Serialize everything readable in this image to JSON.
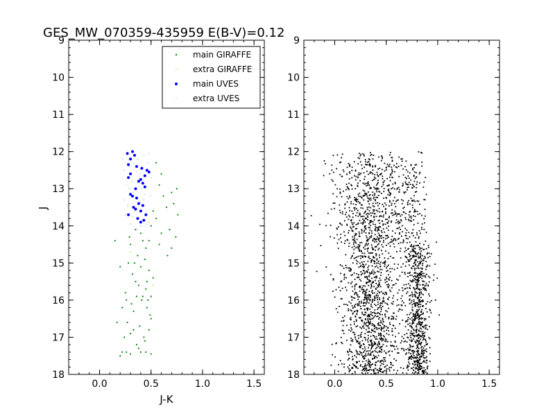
{
  "title": "GES_MW_070359-435959 E(B-V)=0.12",
  "chart_data": [
    {
      "type": "scatter",
      "panel": "left",
      "xlabel": "J-K",
      "ylabel": "J",
      "xlim": [
        -0.3,
        1.6
      ],
      "ylim": [
        18,
        9
      ],
      "y_inverted": true,
      "xticks": [
        "0.0",
        "0.5",
        "1.0",
        "1.5"
      ],
      "yticks": [
        "9",
        "10",
        "11",
        "12",
        "13",
        "14",
        "15",
        "16",
        "17",
        "18"
      ],
      "legend": {
        "placement": "top-right",
        "entries": [
          "main GIRAFFE",
          "extra GIRAFFE",
          "main UVES",
          "extra UVES"
        ]
      },
      "series": [
        {
          "name": "main GIRAFFE",
          "color": "#008000",
          "marker": "small-dot",
          "points": [
            [
              0.55,
              12.3
            ],
            [
              0.6,
              12.6
            ],
            [
              0.58,
              12.9
            ],
            [
              0.62,
              13.2
            ],
            [
              0.65,
              13.5
            ],
            [
              0.7,
              13.1
            ],
            [
              0.72,
              13.4
            ],
            [
              0.75,
              13.0
            ],
            [
              0.76,
              13.7
            ],
            [
              0.74,
              14.3
            ],
            [
              0.68,
              14.1
            ],
            [
              0.7,
              14.6
            ],
            [
              0.66,
              14.8
            ],
            [
              0.6,
              14.2
            ],
            [
              0.58,
              14.5
            ],
            [
              0.55,
              13.8
            ],
            [
              0.52,
              13.6
            ],
            [
              0.5,
              14.0
            ],
            [
              0.48,
              14.4
            ],
            [
              0.45,
              14.6
            ],
            [
              0.4,
              14.2
            ],
            [
              0.35,
              14.1
            ],
            [
              0.3,
              14.5
            ],
            [
              0.28,
              15.0
            ],
            [
              0.32,
              15.3
            ],
            [
              0.38,
              15.6
            ],
            [
              0.42,
              15.9
            ],
            [
              0.46,
              16.2
            ],
            [
              0.5,
              16.5
            ],
            [
              0.48,
              16.8
            ],
            [
              0.44,
              17.1
            ],
            [
              0.4,
              17.4
            ],
            [
              0.36,
              17.2
            ],
            [
              0.3,
              16.9
            ],
            [
              0.27,
              16.6
            ],
            [
              0.33,
              16.3
            ],
            [
              0.41,
              16.0
            ],
            [
              0.45,
              15.7
            ],
            [
              0.35,
              15.5
            ],
            [
              0.25,
              15.8
            ],
            [
              0.22,
              16.2
            ],
            [
              0.2,
              15.1
            ],
            [
              0.15,
              14.4
            ],
            [
              0.17,
              16.6
            ],
            [
              0.2,
              17.5
            ],
            [
              0.22,
              17.4
            ],
            [
              0.26,
              17.4
            ],
            [
              0.3,
              17.45
            ],
            [
              0.45,
              17.4
            ],
            [
              0.5,
              17.45
            ],
            [
              0.48,
              15.2
            ],
            [
              0.52,
              15.4
            ],
            [
              0.47,
              16.0
            ],
            [
              0.39,
              16.7
            ],
            [
              0.43,
              17.0
            ],
            [
              0.37,
              14.8
            ],
            [
              0.29,
              14.3
            ],
            [
              0.34,
              15.0
            ],
            [
              0.31,
              16.1
            ],
            [
              0.44,
              14.9
            ],
            [
              0.5,
              15.9
            ],
            [
              0.49,
              16.4
            ],
            [
              0.38,
              17.3
            ],
            [
              0.26,
              16.0
            ],
            [
              0.24,
              17.0
            ],
            [
              0.42,
              14.4
            ],
            [
              0.36,
              15.9
            ],
            [
              0.33,
              16.8
            ],
            [
              0.46,
              15.5
            ],
            [
              0.4,
              15.1
            ]
          ]
        },
        {
          "name": "extra GIRAFFE",
          "color": "#bfbf00",
          "marker": "tiny-dot",
          "points": [
            [
              0.35,
              13.0
            ],
            [
              0.48,
              13.9
            ],
            [
              0.3,
              14.7
            ],
            [
              0.52,
              15.6
            ]
          ]
        },
        {
          "name": "main UVES",
          "color": "#0000ff",
          "marker": "dot",
          "points": [
            [
              0.27,
              12.05
            ],
            [
              0.32,
              12.0
            ],
            [
              0.34,
              12.1
            ],
            [
              0.3,
              12.2
            ],
            [
              0.28,
              12.35
            ],
            [
              0.36,
              12.4
            ],
            [
              0.41,
              12.45
            ],
            [
              0.46,
              12.5
            ],
            [
              0.48,
              12.55
            ],
            [
              0.44,
              12.65
            ],
            [
              0.3,
              12.6
            ],
            [
              0.28,
              12.7
            ],
            [
              0.38,
              12.8
            ],
            [
              0.4,
              12.75
            ],
            [
              0.42,
              12.85
            ],
            [
              0.35,
              13.0
            ],
            [
              0.32,
              13.2
            ],
            [
              0.36,
              13.25
            ],
            [
              0.38,
              13.4
            ],
            [
              0.42,
              13.45
            ],
            [
              0.33,
              13.5
            ],
            [
              0.28,
              13.7
            ],
            [
              0.37,
              13.8
            ],
            [
              0.4,
              13.9
            ],
            [
              0.43,
              13.85
            ],
            [
              0.45,
              13.7
            ],
            [
              0.4,
              13.6
            ],
            [
              0.44,
              12.95
            ],
            [
              0.3,
              13.15
            ],
            [
              0.35,
              13.55
            ]
          ]
        },
        {
          "name": "extra UVES",
          "color": "#a6c4dc",
          "marker": "tiny-dot",
          "points": [
            [
              0.22,
              12.2
            ],
            [
              0.24,
              12.5
            ],
            [
              0.26,
              12.9
            ],
            [
              0.24,
              13.3
            ],
            [
              0.25,
              13.7
            ],
            [
              0.29,
              12.4
            ],
            [
              0.31,
              12.8
            ],
            [
              0.33,
              13.1
            ],
            [
              0.34,
              13.6
            ],
            [
              0.37,
              12.2
            ],
            [
              0.39,
              12.6
            ],
            [
              0.41,
              13.0
            ],
            [
              0.43,
              13.3
            ],
            [
              0.45,
              13.6
            ],
            [
              0.47,
              12.3
            ],
            [
              0.5,
              12.7
            ],
            [
              0.49,
              13.2
            ],
            [
              0.46,
              13.95
            ],
            [
              0.4,
              14.0
            ],
            [
              0.3,
              13.95
            ],
            [
              0.27,
              13.45
            ],
            [
              0.36,
              12.55
            ],
            [
              0.43,
              12.1
            ],
            [
              0.48,
              12.05
            ],
            [
              0.33,
              12.3
            ],
            [
              0.29,
              13.0
            ],
            [
              0.39,
              13.35
            ],
            [
              0.44,
              13.15
            ],
            [
              0.32,
              13.75
            ],
            [
              0.38,
              12.95
            ]
          ]
        }
      ]
    },
    {
      "type": "scatter",
      "panel": "right",
      "xlabel": "",
      "ylabel": "",
      "xlim": [
        -0.3,
        1.6
      ],
      "ylim": [
        18,
        9
      ],
      "y_inverted": true,
      "xticks": [
        "0.0",
        "0.5",
        "1.0",
        "1.5"
      ],
      "yticks": [
        "9",
        "10",
        "11",
        "12",
        "13",
        "14",
        "15",
        "16",
        "17",
        "18"
      ],
      "series": [
        {
          "color": "#000000",
          "marker": "small-dot",
          "distribution": {
            "count": 2600,
            "j_range": [
              12.0,
              18.0
            ],
            "blue_sequence": {
              "center": 0.35,
              "spread": 0.13,
              "weight": 0.62
            },
            "red_sequence": {
              "center": 0.8,
              "spread": 0.1,
              "weight": 0.38,
              "j_min": 14.5
            },
            "red_upper": {
              "center": 0.75,
              "spread": 0.1,
              "j_range": [
                12.0,
                14.5
              ]
            }
          }
        }
      ]
    }
  ]
}
